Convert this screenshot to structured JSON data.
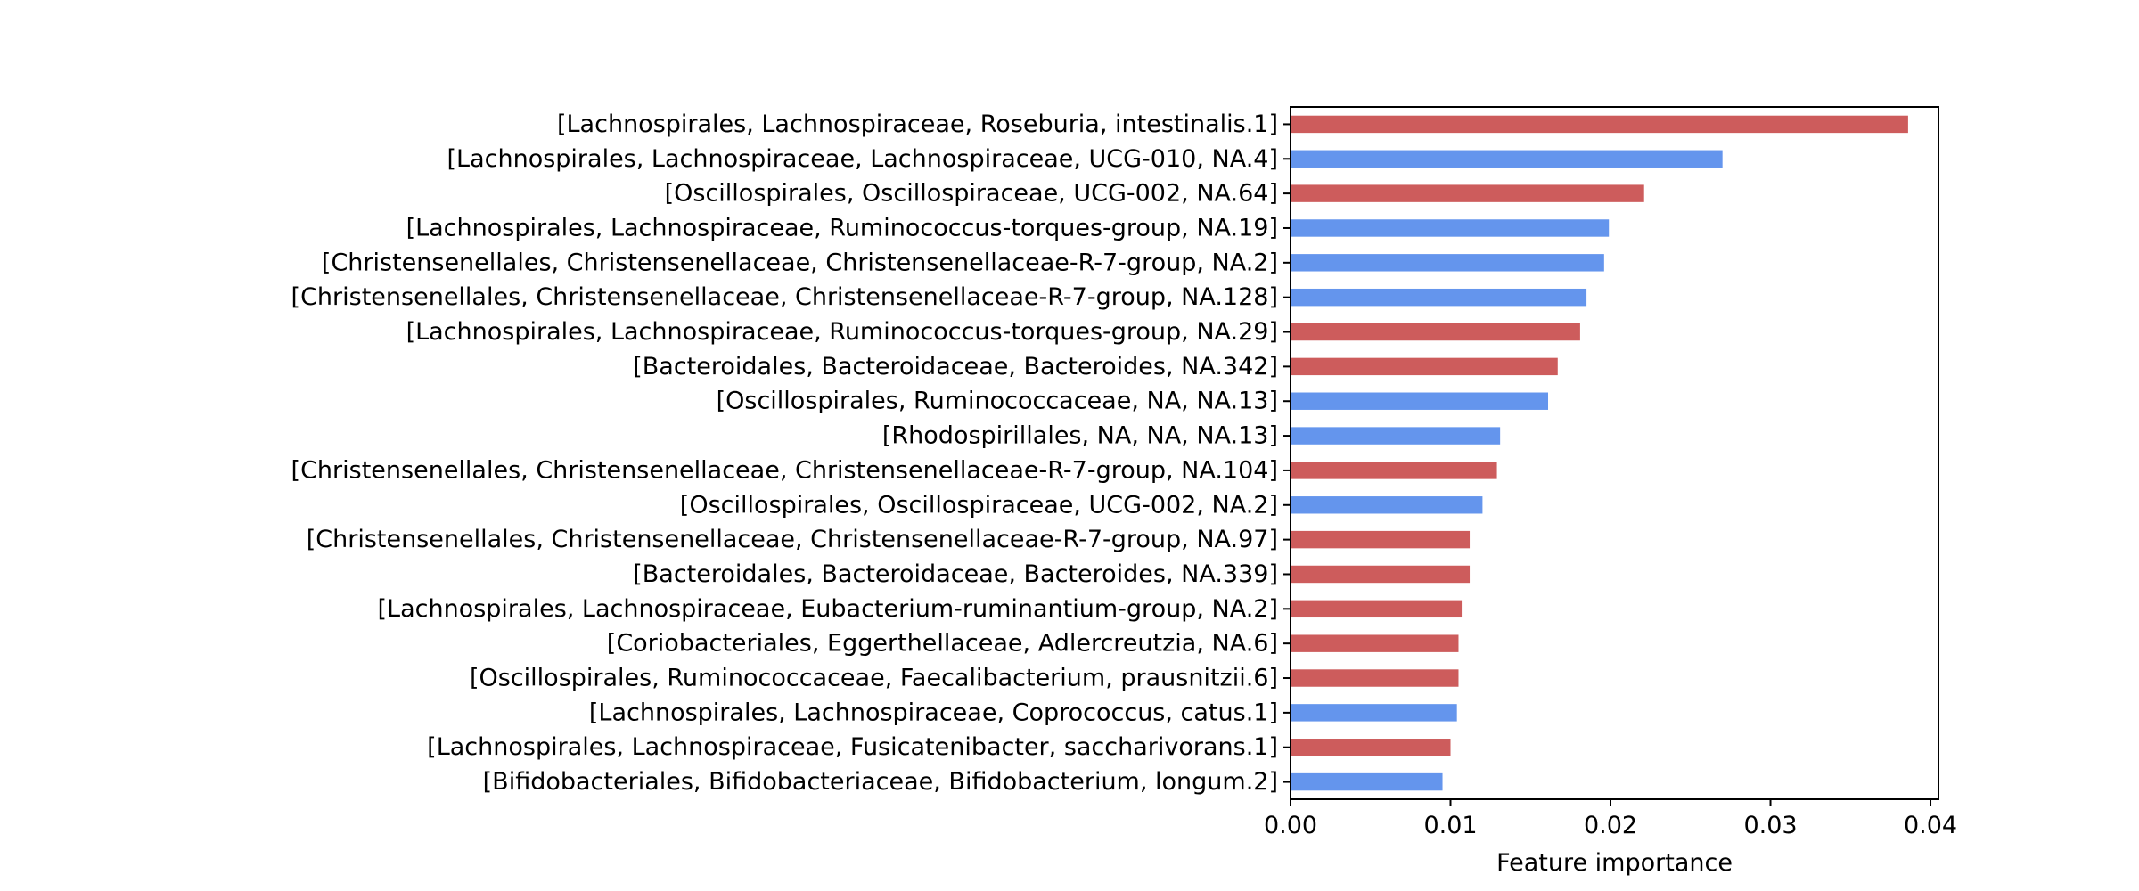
{
  "chart_data": {
    "type": "bar",
    "orientation": "horizontal",
    "title": "",
    "xlabel": "Feature importance",
    "ylabel": "",
    "xlim": [
      0,
      0.0405
    ],
    "xticks": [
      0.0,
      0.01,
      0.02,
      0.03,
      0.04
    ],
    "xtick_labels": [
      "0.00",
      "0.01",
      "0.02",
      "0.03",
      "0.04"
    ],
    "grid": false,
    "legend": "none",
    "colors": {
      "red": "#cd5c5c",
      "blue": "#6495ed"
    },
    "bars": [
      {
        "label": "[Lachnospirales, Lachnospiraceae, Roseburia, intestinalis.1]",
        "value": 0.0386,
        "color": "red"
      },
      {
        "label": "[Lachnospirales, Lachnospiraceae, Lachnospiraceae, UCG-010, NA.4]",
        "value": 0.027,
        "color": "blue"
      },
      {
        "label": "[Oscillospirales, Oscillospiraceae, UCG-002, NA.64]",
        "value": 0.0221,
        "color": "red"
      },
      {
        "label": "[Lachnospirales, Lachnospiraceae, Ruminococcus-torques-group, NA.19]",
        "value": 0.0199,
        "color": "blue"
      },
      {
        "label": "[Christensenellales, Christensenellaceae, Christensenellaceae-R-7-group, NA.2]",
        "value": 0.0196,
        "color": "blue"
      },
      {
        "label": "[Christensenellales, Christensenellaceae, Christensenellaceae-R-7-group, NA.128]",
        "value": 0.0185,
        "color": "blue"
      },
      {
        "label": "[Lachnospirales, Lachnospiraceae, Ruminococcus-torques-group, NA.29]",
        "value": 0.0181,
        "color": "red"
      },
      {
        "label": "[Bacteroidales, Bacteroidaceae, Bacteroides, NA.342]",
        "value": 0.0167,
        "color": "red"
      },
      {
        "label": "[Oscillospirales, Ruminococcaceae, NA, NA.13]",
        "value": 0.0161,
        "color": "blue"
      },
      {
        "label": "[Rhodospirillales, NA, NA, NA.13]",
        "value": 0.0131,
        "color": "blue"
      },
      {
        "label": "[Christensenellales, Christensenellaceae, Christensenellaceae-R-7-group, NA.104]",
        "value": 0.0129,
        "color": "red"
      },
      {
        "label": "[Oscillospirales, Oscillospiraceae, UCG-002, NA.2]",
        "value": 0.012,
        "color": "blue"
      },
      {
        "label": "[Christensenellales, Christensenellaceae, Christensenellaceae-R-7-group, NA.97]",
        "value": 0.0112,
        "color": "red"
      },
      {
        "label": "[Bacteroidales, Bacteroidaceae, Bacteroides, NA.339]",
        "value": 0.0112,
        "color": "red"
      },
      {
        "label": "[Lachnospirales, Lachnospiraceae, Eubacterium-ruminantium-group, NA.2]",
        "value": 0.0107,
        "color": "red"
      },
      {
        "label": "[Coriobacteriales, Eggerthellaceae, Adlercreutzia, NA.6]",
        "value": 0.0105,
        "color": "red"
      },
      {
        "label": "[Oscillospirales, Ruminococcaceae, Faecalibacterium, prausnitzii.6]",
        "value": 0.0105,
        "color": "red"
      },
      {
        "label": "[Lachnospirales, Lachnospiraceae, Coprococcus, catus.1]",
        "value": 0.0104,
        "color": "blue"
      },
      {
        "label": "[Lachnospirales, Lachnospiraceae, Fusicatenibacter, saccharivorans.1]",
        "value": 0.01,
        "color": "red"
      },
      {
        "label": "[Bifidobacteriales, Bifidobacteriaceae, Bifidobacterium, longum.2]",
        "value": 0.0095,
        "color": "blue"
      }
    ]
  }
}
